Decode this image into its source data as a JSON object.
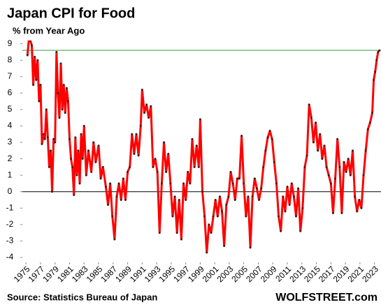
{
  "chart_data": {
    "type": "line",
    "title": "Japan CPI for Food",
    "subtitle": "% from Year Ago",
    "source": "Source: Statistics Bureau of Japan",
    "brand": "WOLFSTREET.com",
    "x": [
      1975.2,
      1975.4,
      1975.6,
      1975.8,
      1976.0,
      1976.2,
      1976.4,
      1976.6,
      1976.8,
      1977.0,
      1977.2,
      1977.4,
      1977.6,
      1977.8,
      1978.0,
      1978.2,
      1978.4,
      1978.6,
      1978.8,
      1979.0,
      1979.2,
      1979.4,
      1979.6,
      1979.8,
      1980.0,
      1980.2,
      1980.4,
      1980.6,
      1980.8,
      1981.0,
      1981.2,
      1981.4,
      1981.6,
      1981.8,
      1982.0,
      1982.2,
      1982.4,
      1982.6,
      1982.8,
      1983.0,
      1983.3,
      1983.6,
      1984.0,
      1984.3,
      1984.6,
      1985.0,
      1985.3,
      1985.6,
      1986.0,
      1986.3,
      1986.6,
      1986.9,
      1987.2,
      1987.5,
      1987.8,
      1988.1,
      1988.4,
      1988.7,
      1989.0,
      1989.3,
      1989.6,
      1989.9,
      1990.2,
      1990.5,
      1990.8,
      1991.0,
      1991.3,
      1991.6,
      1991.9,
      1992.2,
      1992.5,
      1992.8,
      1993.1,
      1993.4,
      1993.7,
      1994.0,
      1994.3,
      1994.6,
      1994.9,
      1995.2,
      1995.5,
      1995.8,
      1996.1,
      1996.4,
      1996.7,
      1997.0,
      1997.3,
      1997.6,
      1997.9,
      1998.2,
      1998.5,
      1998.8,
      1999.0,
      1999.3,
      1999.6,
      1999.9,
      2000.2,
      2000.5,
      2000.8,
      2001.1,
      2001.4,
      2001.7,
      2002.0,
      2002.3,
      2002.6,
      2002.9,
      2003.2,
      2003.5,
      2003.8,
      2004.1,
      2004.4,
      2004.7,
      2005.0,
      2005.3,
      2005.6,
      2005.9,
      2006.2,
      2006.5,
      2006.8,
      2007.1,
      2007.4,
      2007.7,
      2008.0,
      2008.3,
      2008.6,
      2008.9,
      2009.2,
      2009.5,
      2009.8,
      2010.1,
      2010.4,
      2010.7,
      2011.0,
      2011.3,
      2011.6,
      2011.9,
      2012.2,
      2012.5,
      2012.8,
      2013.1,
      2013.4,
      2013.7,
      2014.0,
      2014.3,
      2014.6,
      2014.9,
      2015.2,
      2015.5,
      2015.8,
      2016.1,
      2016.4,
      2016.7,
      2017.0,
      2017.3,
      2017.6,
      2017.9,
      2018.2,
      2018.5,
      2018.8,
      2019.1,
      2019.4,
      2019.7,
      2020.0,
      2020.3,
      2020.6,
      2020.9,
      2021.2,
      2021.5,
      2021.8,
      2022.1,
      2022.4,
      2022.7,
      2022.9,
      2023.1,
      2023.3,
      2023.5,
      2023.7
    ],
    "series": [
      {
        "color": "#ff0000",
        "values": [
          8.3,
          9.3,
          9.2,
          8.9,
          6.5,
          8.2,
          6.8,
          8.0,
          5.5,
          6.5,
          2.9,
          3.5,
          3.2,
          5.0,
          3.3,
          1.5,
          2.5,
          0.0,
          3.2,
          3.0,
          8.5,
          6.0,
          4.5,
          7.8,
          5.0,
          6.5,
          4.8,
          6.3,
          5.5,
          3.2,
          2.0,
          1.5,
          -0.2,
          3.3,
          1.0,
          2.5,
          0.5,
          3.5,
          2.0,
          4.0,
          1.0,
          2.5,
          1.2,
          3.0,
          1.8,
          2.8,
          0.8,
          1.5,
          0.3,
          -0.8,
          0.5,
          -1.5,
          -2.9,
          -0.3,
          0.5,
          -0.5,
          0.8,
          -0.5,
          1.2,
          1.5,
          3.5,
          2.3,
          3.5,
          2.2,
          4.0,
          6.2,
          4.8,
          5.3,
          4.5,
          5.2,
          1.5,
          2.0,
          1.2,
          -2.5,
          0.5,
          3.0,
          1.2,
          2.3,
          0.5,
          -1.5,
          -0.3,
          -2.5,
          -0.5,
          -2.9,
          0.5,
          -0.5,
          1.2,
          0.5,
          3.2,
          1.5,
          2.8,
          1.5,
          4.4,
          0.0,
          -1.5,
          -3.7,
          -2.0,
          -2.5,
          -1.5,
          -0.5,
          -1.5,
          -0.3,
          -1.2,
          -3.3,
          -0.8,
          -0.3,
          1.2,
          0.5,
          -0.5,
          0.8,
          0.8,
          3.4,
          0.5,
          -1.5,
          -0.3,
          -3.4,
          -0.3,
          0.8,
          0.2,
          -0.5,
          0.2,
          1.5,
          2.5,
          3.3,
          3.7,
          3.2,
          1.8,
          0.5,
          -1.5,
          -2.4,
          -0.3,
          -1.2,
          0.3,
          -0.8,
          0.5,
          -0.3,
          -1.5,
          0.2,
          -2.4,
          -1.0,
          1.5,
          2.2,
          5.3,
          4.5,
          3.0,
          4.2,
          2.5,
          3.5,
          2.0,
          2.8,
          1.5,
          1.0,
          0.5,
          -1.3,
          0.8,
          3.2,
          1.5,
          -1.3,
          1.8,
          1.2,
          2.0,
          1.0,
          2.5,
          -0.3,
          -1.2,
          -0.5,
          -1.0,
          1.0,
          2.5,
          3.8,
          4.2,
          4.8,
          6.8,
          7.3,
          8.0,
          8.5,
          8.6
        ]
      }
    ],
    "marker_color": "#222222",
    "xlim": [
      1974.5,
      2023.9
    ],
    "ylim": [
      -4.3,
      9.2
    ],
    "xticks": [
      1975,
      1977,
      1979,
      1981,
      1983,
      1985,
      1987,
      1989,
      1991,
      1993,
      1995,
      1997,
      1999,
      2001,
      2003,
      2005,
      2007,
      2009,
      2011,
      2013,
      2015,
      2017,
      2019,
      2021,
      2023
    ],
    "yticks": [
      -4,
      -3,
      -2,
      -1,
      0,
      1,
      2,
      3,
      4,
      5,
      6,
      7,
      8,
      9
    ],
    "zero_line": true,
    "reference_line": {
      "value": 8.6,
      "color": "#2e9e4a"
    }
  }
}
